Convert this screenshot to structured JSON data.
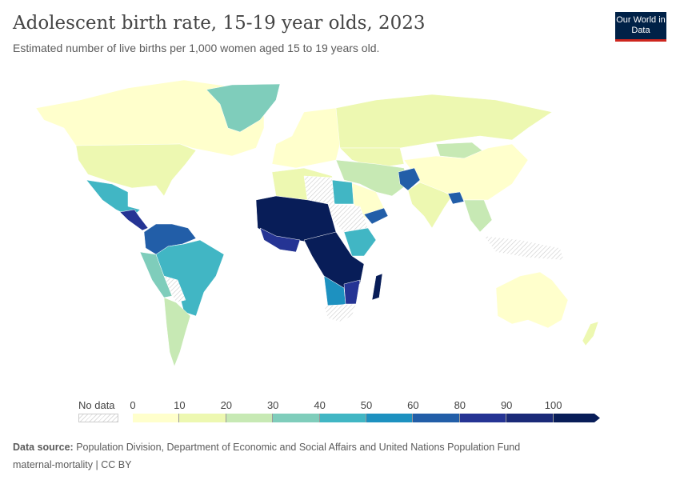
{
  "header": {
    "title": "Adolescent birth rate, 15-19 year olds, 2023",
    "subtitle": "Estimated number of live births per 1,000 women aged 15 to 19 years old.",
    "logo": "Our World in Data"
  },
  "legend": {
    "no_data_label": "No data",
    "ticks": [
      "0",
      "10",
      "20",
      "30",
      "40",
      "50",
      "60",
      "80",
      "90",
      "100"
    ],
    "bins": [
      {
        "from": 0,
        "to": 10,
        "color": "#ffffcc"
      },
      {
        "from": 10,
        "to": 20,
        "color": "#edf8b1"
      },
      {
        "from": 20,
        "to": 30,
        "color": "#c7e9b4"
      },
      {
        "from": 30,
        "to": 40,
        "color": "#7fcdbb"
      },
      {
        "from": 40,
        "to": 50,
        "color": "#41b6c4"
      },
      {
        "from": 50,
        "to": 60,
        "color": "#1d91c0"
      },
      {
        "from": 60,
        "to": 80,
        "color": "#225ea8"
      },
      {
        "from": 80,
        "to": 90,
        "color": "#253494"
      },
      {
        "from": 90,
        "to": 100,
        "color": "#1a2a78"
      },
      {
        "from": 100,
        "to": null,
        "color": "#081d58"
      }
    ]
  },
  "footer": {
    "source_label": "Data source:",
    "source": "Population Division, Department of Economic and Social Affairs and United Nations Population Fund",
    "line2": "maternal-mortality | CC BY"
  }
}
